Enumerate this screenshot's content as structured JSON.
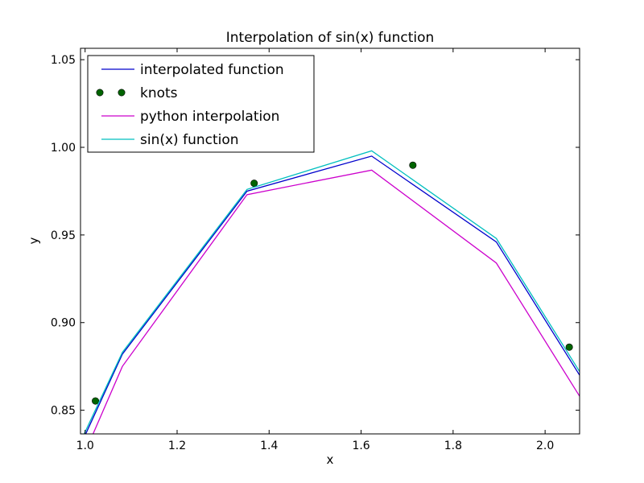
{
  "chart_data": {
    "type": "line",
    "title": "Interpolation of sin(x) function",
    "xlabel": "x",
    "ylabel": "y",
    "xlim": [
      0.99,
      2.075
    ],
    "ylim": [
      0.8365,
      1.0565
    ],
    "xticks": [
      1.0,
      1.2,
      1.4,
      1.6,
      1.8,
      2.0
    ],
    "xtick_labels": [
      "1.0",
      "1.2",
      "1.4",
      "1.6",
      "1.8",
      "2.0"
    ],
    "yticks": [
      0.85,
      0.9,
      0.95,
      1.0,
      1.05
    ],
    "ytick_labels": [
      "0.85",
      "0.90",
      "0.95",
      "1.00",
      "1.05"
    ],
    "grid": false,
    "legend_position": "top-left",
    "series": [
      {
        "name": "interpolated function",
        "style": "line",
        "color": "#0000cc",
        "x": [
          0.99,
          1.081,
          1.352,
          1.623,
          1.894,
          2.075
        ],
        "y": [
          0.83,
          0.882,
          0.975,
          0.995,
          0.946,
          0.87
        ]
      },
      {
        "name": "knots",
        "style": "markers",
        "color": "#006400",
        "x": [
          1.0225,
          1.3675,
          1.7125,
          2.0525
        ],
        "y": [
          0.8553,
          0.9795,
          0.9898,
          0.886
        ]
      },
      {
        "name": "python interpolation",
        "style": "line",
        "color": "#cc00cc",
        "x": [
          0.99,
          1.081,
          1.352,
          1.623,
          1.894,
          2.075
        ],
        "y": [
          0.82,
          0.875,
          0.973,
          0.987,
          0.934,
          0.858
        ]
      },
      {
        "name": "sin(x) function",
        "style": "line",
        "color": "#00bfbf",
        "x": [
          0.99,
          1.081,
          1.352,
          1.623,
          1.894,
          2.075
        ],
        "y": [
          0.832,
          0.883,
          0.976,
          0.998,
          0.948,
          0.872
        ]
      }
    ]
  }
}
